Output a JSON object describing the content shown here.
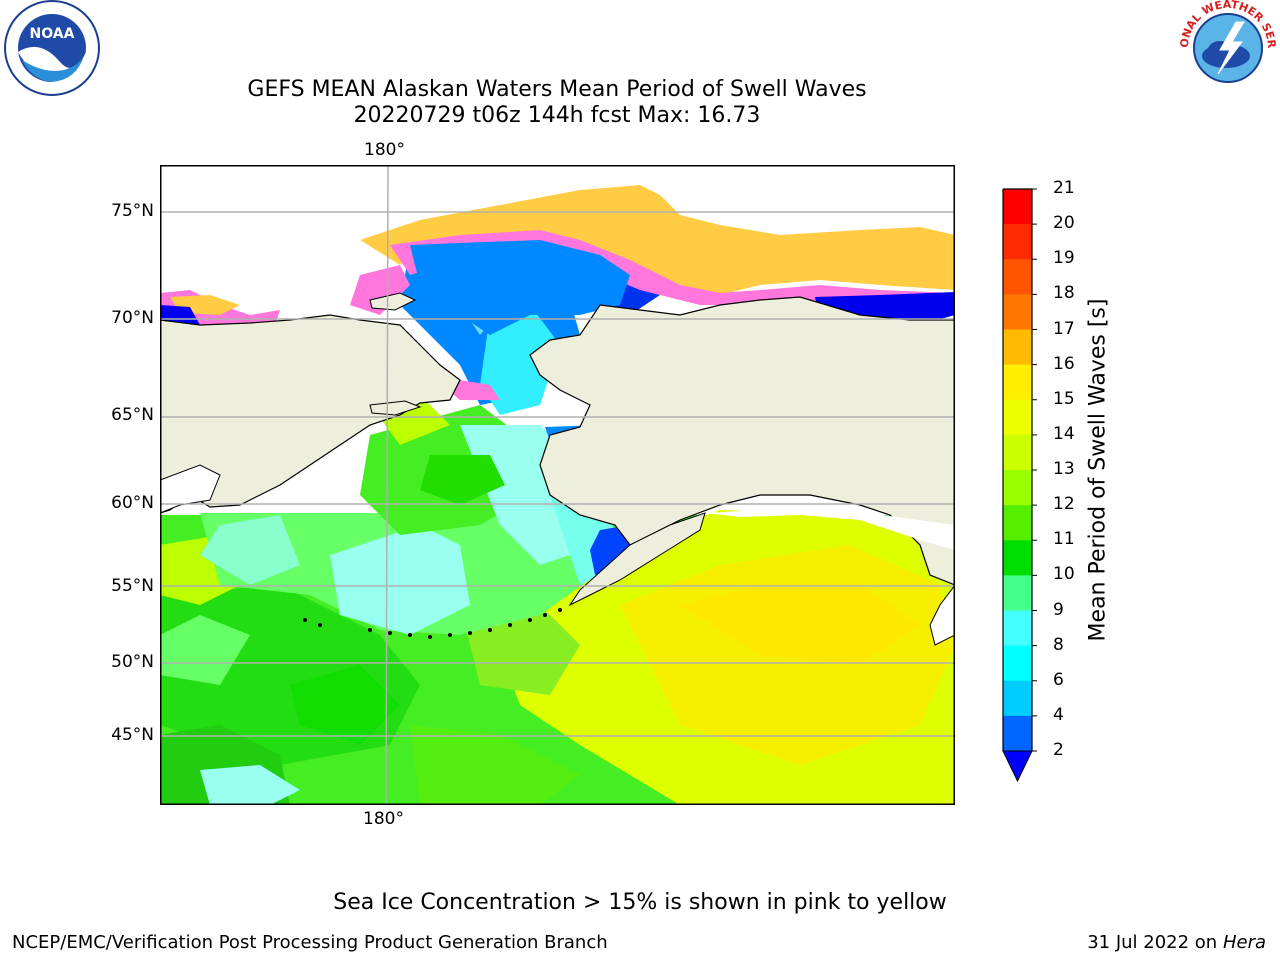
{
  "title_line1": "GEFS MEAN Alaskan Waters Mean Period of Swell Waves",
  "title_line2": "20220729 t06z 144h fcst   Max: 16.73",
  "map": {
    "lat_labels": [
      "75°N",
      "70°N",
      "65°N",
      "60°N",
      "55°N",
      "50°N",
      "45°N"
    ],
    "lon_label_top": "180°",
    "lon_label_bottom": "180°",
    "land_color": "#eeeedc",
    "ocean_colors": {
      "cyan": "#99ffff",
      "green": "#33dd22",
      "yellow": "#eeff00",
      "blue": "#0066ff",
      "ice_pink": "#ff66dd",
      "ice_yellow": "#ffcc44"
    }
  },
  "colorbar": {
    "label": "Mean Period of Swell Waves [s]",
    "ticks": [
      "21",
      "20",
      "19",
      "18",
      "17",
      "16",
      "15",
      "14",
      "13",
      "12",
      "11",
      "10",
      "9",
      "8",
      "6",
      "4",
      "2"
    ],
    "colors": [
      "#ff0000",
      "#ff2b00",
      "#ff5500",
      "#ff7700",
      "#ff9900",
      "#ffbb00",
      "#ffee00",
      "#eeff00",
      "#ccff00",
      "#99ff00",
      "#55ee00",
      "#00dd00",
      "#44ff88",
      "#88ffee",
      "#44ffff",
      "#00ffff",
      "#00ccff",
      "#0066ff"
    ],
    "under_color": "#0000ff"
  },
  "footer": {
    "ice_note": "Sea Ice Concentration > 15% is shown in pink to yellow",
    "producer": "NCEP/EMC/Verification Post Processing Product Generation Branch",
    "date": "31 Jul 2022 on",
    "machine": "Hera"
  },
  "logos": {
    "left_text": "NOAA",
    "right_text": "NATIONAL WEATHER SERVICE"
  }
}
